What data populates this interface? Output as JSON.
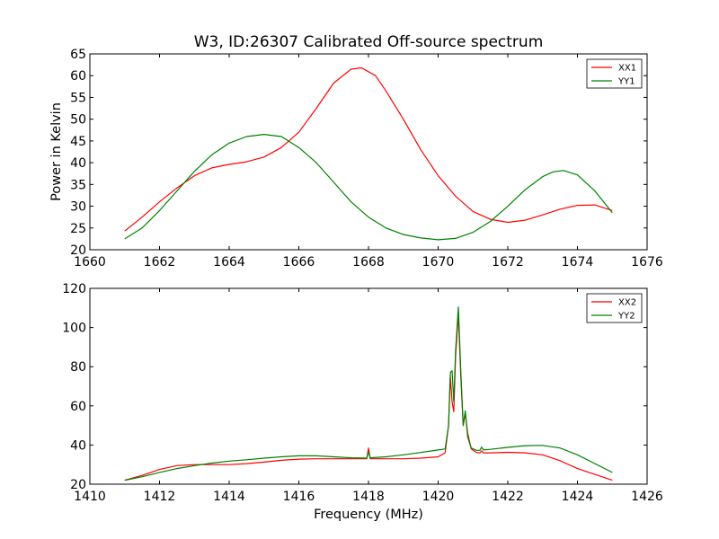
{
  "chart_data": [
    {
      "type": "line",
      "title": "W3, ID:26307 Calibrated Off-source spectrum",
      "xlabel": "",
      "ylabel": "Power in Kelvin",
      "xlim": [
        1660,
        1676
      ],
      "ylim": [
        20,
        65
      ],
      "xticks": [
        "1660",
        "1662",
        "1664",
        "1666",
        "1668",
        "1670",
        "1672",
        "1674",
        "1676"
      ],
      "yticks": [
        "20",
        "25",
        "30",
        "35",
        "40",
        "45",
        "50",
        "55",
        "60",
        "65"
      ],
      "legend_position": "top-right",
      "grid": false,
      "series": [
        {
          "name": "XX1",
          "color": "#ff0000",
          "x": [
            1661.0,
            1661.5,
            1662.0,
            1662.5,
            1663.0,
            1663.5,
            1664.0,
            1664.5,
            1665.0,
            1665.5,
            1666.0,
            1666.5,
            1667.0,
            1667.5,
            1667.8,
            1668.2,
            1668.5,
            1669.0,
            1669.5,
            1670.0,
            1670.5,
            1671.0,
            1671.5,
            1672.0,
            1672.5,
            1673.0,
            1673.5,
            1674.0,
            1674.5,
            1675.0
          ],
          "y": [
            24.3,
            27.5,
            31.0,
            34.2,
            37.0,
            38.8,
            39.6,
            40.2,
            41.3,
            43.5,
            47.0,
            52.5,
            58.3,
            61.5,
            61.8,
            60.0,
            56.5,
            50.0,
            43.0,
            37.0,
            32.3,
            28.8,
            27.0,
            26.3,
            26.8,
            28.0,
            29.3,
            30.2,
            30.3,
            29.0
          ]
        },
        {
          "name": "YY1",
          "color": "#008000",
          "x": [
            1661.0,
            1661.5,
            1662.0,
            1662.5,
            1663.0,
            1663.5,
            1664.0,
            1664.5,
            1665.0,
            1665.5,
            1666.0,
            1666.5,
            1667.0,
            1667.5,
            1668.0,
            1668.5,
            1669.0,
            1669.5,
            1670.0,
            1670.5,
            1671.0,
            1671.5,
            1672.0,
            1672.5,
            1673.0,
            1673.3,
            1673.6,
            1674.0,
            1674.5,
            1675.0
          ],
          "y": [
            22.5,
            25.0,
            29.0,
            33.5,
            38.0,
            41.8,
            44.5,
            46.0,
            46.5,
            46.0,
            43.5,
            40.0,
            35.5,
            31.0,
            27.5,
            25.0,
            23.5,
            22.7,
            22.3,
            22.6,
            24.0,
            26.5,
            30.0,
            33.8,
            36.8,
            37.9,
            38.2,
            37.2,
            33.5,
            28.5
          ]
        }
      ]
    },
    {
      "type": "line",
      "title": "",
      "xlabel": "Frequency (MHz)",
      "ylabel": "",
      "xlim": [
        1410,
        1426
      ],
      "ylim": [
        20,
        120
      ],
      "xticks": [
        "1410",
        "1412",
        "1414",
        "1416",
        "1418",
        "1420",
        "1422",
        "1424",
        "1426"
      ],
      "yticks": [
        "20",
        "40",
        "60",
        "80",
        "100",
        "120"
      ],
      "legend_position": "top-right",
      "grid": false,
      "series": [
        {
          "name": "XX2",
          "color": "#ff0000",
          "x": [
            1411.0,
            1411.5,
            1412.0,
            1412.5,
            1413.0,
            1413.5,
            1414.0,
            1414.5,
            1415.0,
            1415.5,
            1416.0,
            1416.5,
            1417.0,
            1417.5,
            1417.95,
            1418.0,
            1418.05,
            1418.5,
            1419.0,
            1419.5,
            1420.0,
            1420.2,
            1420.3,
            1420.35,
            1420.4,
            1420.45,
            1420.5,
            1420.58,
            1420.65,
            1420.72,
            1420.78,
            1420.85,
            1420.95,
            1421.1,
            1421.2,
            1421.25,
            1421.3,
            1421.5,
            1422.0,
            1422.5,
            1423.0,
            1423.5,
            1424.0,
            1424.5,
            1425.0
          ],
          "y": [
            22.0,
            24.5,
            27.5,
            29.5,
            30.0,
            30.0,
            30.0,
            30.5,
            31.3,
            32.2,
            32.8,
            33.0,
            33.0,
            33.0,
            33.0,
            38.5,
            33.0,
            33.0,
            33.0,
            33.3,
            34.0,
            36.0,
            50.0,
            75.0,
            62.0,
            57.0,
            85.0,
            107.0,
            75.0,
            50.0,
            56.0,
            46.0,
            38.0,
            36.2,
            36.0,
            37.0,
            36.0,
            36.0,
            36.3,
            36.0,
            35.0,
            32.0,
            28.0,
            25.0,
            22.0
          ]
        },
        {
          "name": "YY2",
          "color": "#008000",
          "x": [
            1411.0,
            1411.5,
            1412.0,
            1412.5,
            1413.0,
            1413.5,
            1414.0,
            1414.5,
            1415.0,
            1415.5,
            1416.0,
            1416.5,
            1417.0,
            1417.5,
            1417.95,
            1418.0,
            1418.05,
            1418.5,
            1419.0,
            1419.5,
            1420.0,
            1420.2,
            1420.3,
            1420.35,
            1420.4,
            1420.45,
            1420.5,
            1420.58,
            1420.65,
            1420.72,
            1420.78,
            1420.85,
            1420.95,
            1421.1,
            1421.2,
            1421.25,
            1421.3,
            1421.5,
            1422.0,
            1422.5,
            1423.0,
            1423.5,
            1424.0,
            1424.5,
            1425.0
          ],
          "y": [
            22.0,
            23.8,
            26.0,
            28.0,
            29.5,
            30.8,
            31.8,
            32.5,
            33.3,
            34.0,
            34.5,
            34.5,
            34.0,
            33.5,
            33.3,
            36.5,
            33.5,
            34.0,
            35.0,
            36.2,
            37.5,
            38.0,
            50.0,
            77.0,
            78.0,
            62.0,
            88.0,
            110.5,
            78.0,
            50.0,
            57.5,
            44.0,
            38.5,
            37.3,
            37.3,
            39.0,
            37.5,
            37.8,
            38.8,
            39.7,
            39.8,
            38.5,
            35.0,
            30.5,
            26.0
          ]
        }
      ]
    }
  ]
}
